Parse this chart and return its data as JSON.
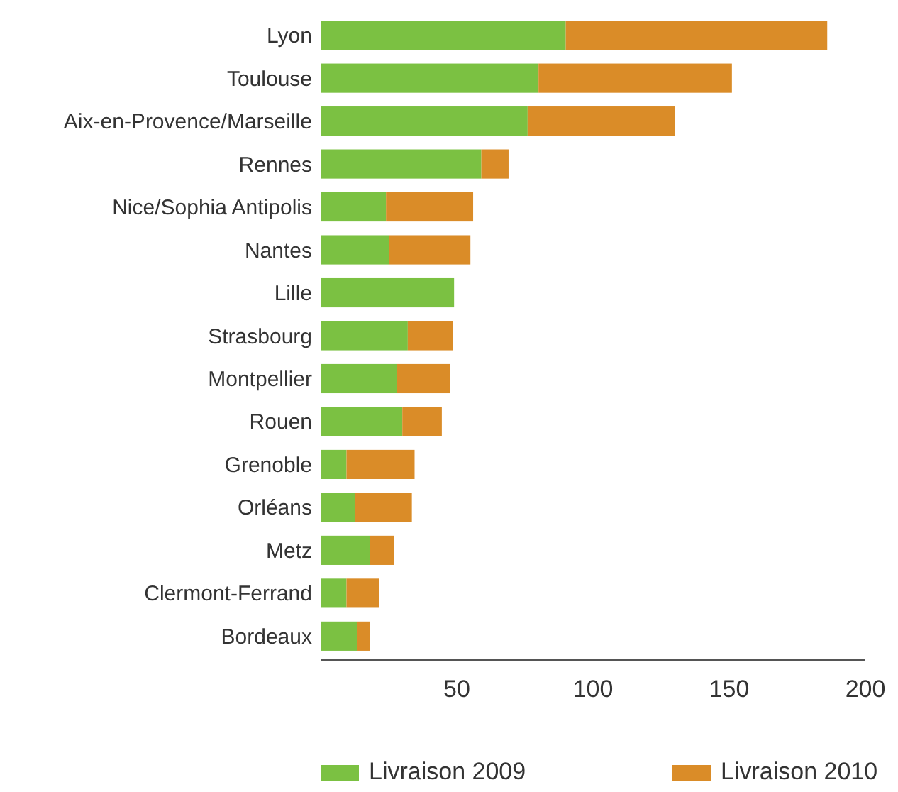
{
  "chart_data": {
    "type": "bar",
    "orientation": "horizontal",
    "stacked": true,
    "categories": [
      "Lyon",
      "Toulouse",
      "Aix-en-Provence/Marseille",
      "Rennes",
      "Nice/Sophia Antipolis",
      "Nantes",
      "Lille",
      "Strasbourg",
      "Montpellier",
      "Rouen",
      "Grenoble",
      "Orléans",
      "Metz",
      "Clermont-Ferrand",
      "Bordeaux"
    ],
    "series": [
      {
        "name": "Livraison 2009",
        "color": "#7bc142",
        "values": [
          90,
          80,
          76,
          59,
          24,
          25,
          49,
          32,
          28,
          30,
          9.5,
          12.5,
          18,
          9.5,
          13.5
        ]
      },
      {
        "name": "Livraison 2010",
        "color": "#da8c28",
        "values": [
          96,
          71,
          54,
          10,
          32,
          30,
          0,
          16.5,
          19.5,
          14.5,
          25,
          21,
          9,
          12,
          4.5
        ]
      }
    ],
    "xlim": [
      0,
      200
    ],
    "xticks": [
      50,
      100,
      150,
      200
    ],
    "grid": false,
    "legend": "bottom"
  }
}
